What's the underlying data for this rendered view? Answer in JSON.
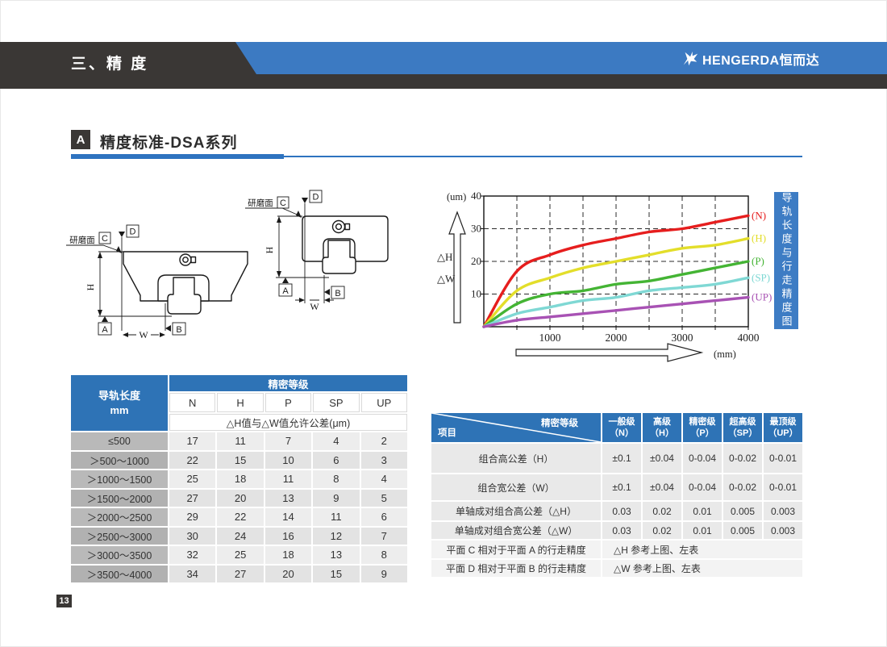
{
  "header": {
    "title": "三、精 度",
    "brand_text": "HENGERDA恒而达"
  },
  "section": {
    "badge": "A",
    "title": "精度标准-DSA系列"
  },
  "diagram": {
    "grind_label": "研磨面",
    "datum_a": "A",
    "datum_b": "B",
    "datum_c": "C",
    "datum_d": "D",
    "dim_h": "H",
    "dim_w": "W"
  },
  "chart_banner": "导轨长度与行走精度图",
  "chart_data": {
    "type": "line",
    "title": "导轨长度与行走精度图",
    "xlabel": "(mm)",
    "ylabel": "(um)",
    "xlim": [
      0,
      4000
    ],
    "ylim": [
      0,
      40
    ],
    "xticks": [
      1000,
      2000,
      3000,
      4000
    ],
    "yticks": [
      10,
      20,
      30,
      40
    ],
    "grid": "dashed",
    "grid_step_x": 500,
    "y_arrow_labels": [
      "△H",
      "△W"
    ],
    "legend_position": "right-of-curves",
    "x": [
      0,
      500,
      1000,
      1500,
      2000,
      2500,
      3000,
      3500,
      4000
    ],
    "series": [
      {
        "name": "(N)",
        "color": "#e61e1e",
        "values": [
          0,
          17,
          22,
          25,
          27,
          29,
          30,
          32,
          34
        ]
      },
      {
        "name": "(H)",
        "color": "#e3de2a",
        "values": [
          0,
          11,
          15,
          18,
          20,
          22,
          24,
          25,
          27
        ]
      },
      {
        "name": "(P)",
        "color": "#44b434",
        "values": [
          0,
          7,
          10,
          11,
          13,
          14,
          16,
          18,
          20
        ]
      },
      {
        "name": "(SP)",
        "color": "#7fd8d4",
        "values": [
          0,
          4,
          6,
          8,
          9,
          11,
          12,
          13,
          15
        ]
      },
      {
        "name": "(UP)",
        "color": "#a852b4",
        "values": [
          0,
          2,
          3,
          4,
          5,
          6,
          7,
          8,
          9
        ]
      }
    ]
  },
  "left_table": {
    "row_header_line1": "导轨长度",
    "row_header_line2": "mm",
    "group_header": "精密等级",
    "columns": [
      "N",
      "H",
      "P",
      "SP",
      "UP"
    ],
    "sub_header": "△H值与△W值允许公差(μm)",
    "rows": [
      {
        "label": "≤500",
        "values": [
          "17",
          "11",
          "7",
          "4",
          "2"
        ]
      },
      {
        "label": "＞500～1000",
        "values": [
          "22",
          "15",
          "10",
          "6",
          "3"
        ]
      },
      {
        "label": "＞1000～1500",
        "values": [
          "25",
          "18",
          "11",
          "8",
          "4"
        ]
      },
      {
        "label": "＞1500～2000",
        "values": [
          "27",
          "20",
          "13",
          "9",
          "5"
        ]
      },
      {
        "label": "＞2000～2500",
        "values": [
          "29",
          "22",
          "14",
          "11",
          "6"
        ]
      },
      {
        "label": "＞2500～3000",
        "values": [
          "30",
          "24",
          "16",
          "12",
          "7"
        ]
      },
      {
        "label": "＞3000～3500",
        "values": [
          "32",
          "25",
          "18",
          "13",
          "8"
        ]
      },
      {
        "label": "＞3500～4000",
        "values": [
          "34",
          "27",
          "20",
          "15",
          "9"
        ]
      }
    ]
  },
  "right_table": {
    "corner_top": "精密等级",
    "corner_bottom": "项目",
    "columns": [
      {
        "line1": "一般级",
        "line2": "（N）"
      },
      {
        "line1": "高级",
        "line2": "（H）"
      },
      {
        "line1": "精密级",
        "line2": "（P）"
      },
      {
        "line1": "超高级",
        "line2": "（SP）"
      },
      {
        "line1": "最顶级",
        "line2": "（UP）"
      }
    ],
    "rows": [
      {
        "label": "组合高公差（H）",
        "values": [
          "±0.1",
          "±0.04",
          "0-0.04",
          "0-0.02",
          "0-0.01"
        ]
      },
      {
        "label": "组合宽公差（W）",
        "values": [
          "±0.1",
          "±0.04",
          "0-0.04",
          "0-0.02",
          "0-0.01"
        ]
      },
      {
        "label": "单轴成对组合高公差（△H）",
        "values": [
          "0.03",
          "0.02",
          "0.01",
          "0.005",
          "0.003"
        ]
      },
      {
        "label": "单轴成对组合宽公差（△W）",
        "values": [
          "0.03",
          "0.02",
          "0.01",
          "0.005",
          "0.003"
        ]
      },
      {
        "label": "平面 C 相对于平面 A 的行走精度",
        "span": "△H 参考上图、左表"
      },
      {
        "label": "平面 D 相对于平面 B 的行走精度",
        "span": "△W 参考上图、左表"
      }
    ]
  },
  "page_number": "13"
}
